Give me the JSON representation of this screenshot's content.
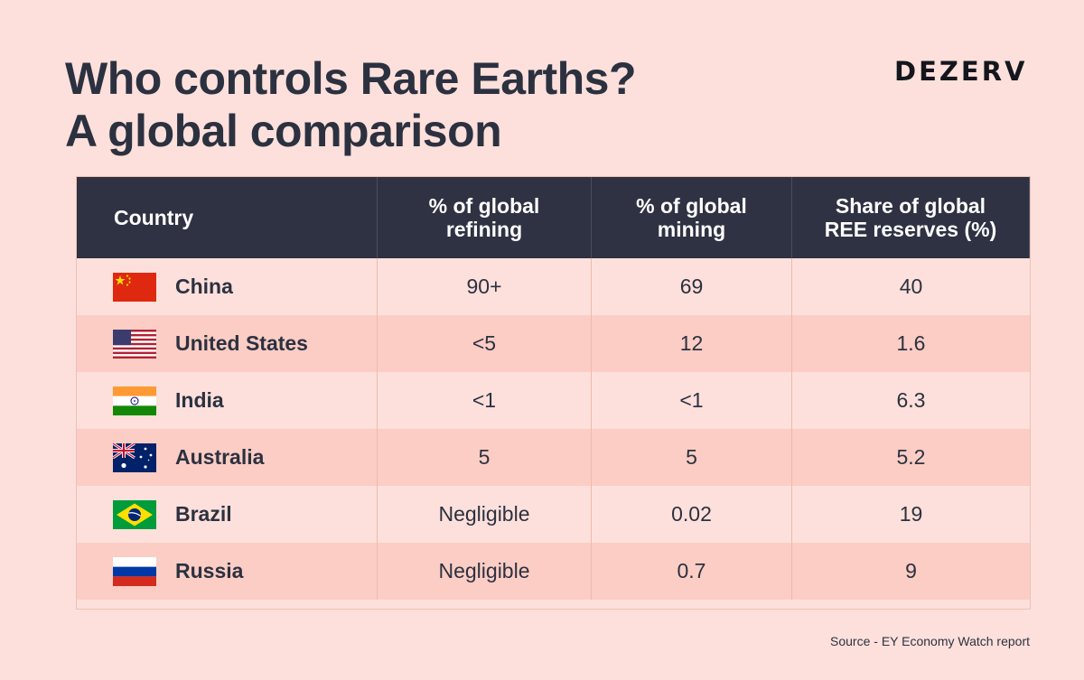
{
  "title": {
    "line1": "Who controls Rare Earths?",
    "line2": "A global comparison"
  },
  "brand": "DEZERV",
  "table": {
    "headers": {
      "country": "Country",
      "refining_line1": "% of global",
      "refining_line2": "refining",
      "mining_line1": "% of global",
      "mining_line2": "mining",
      "reserves_line1": "Share of global",
      "reserves_line2": "REE reserves (%)"
    },
    "rows": [
      {
        "country": "China",
        "flag": "china-flag-icon",
        "refining": "90+",
        "mining": "69",
        "reserves": "40"
      },
      {
        "country": "United States",
        "flag": "usa-flag-icon",
        "refining": "<5",
        "mining": "12",
        "reserves": "1.6"
      },
      {
        "country": "India",
        "flag": "india-flag-icon",
        "refining": "<1",
        "mining": "<1",
        "reserves": "6.3"
      },
      {
        "country": "Australia",
        "flag": "australia-flag-icon",
        "refining": "5",
        "mining": "5",
        "reserves": "5.2"
      },
      {
        "country": "Brazil",
        "flag": "brazil-flag-icon",
        "refining": "Negligible",
        "mining": "0.02",
        "reserves": "19"
      },
      {
        "country": "Russia",
        "flag": "russia-flag-icon",
        "refining": "Negligible",
        "mining": "0.7",
        "reserves": "9"
      }
    ]
  },
  "source": "Source - EY Economy Watch report",
  "colors": {
    "background": "#fde0db",
    "row_alt": "#fbcdc4",
    "header_bg": "#2e3242",
    "text": "#2c3140"
  }
}
